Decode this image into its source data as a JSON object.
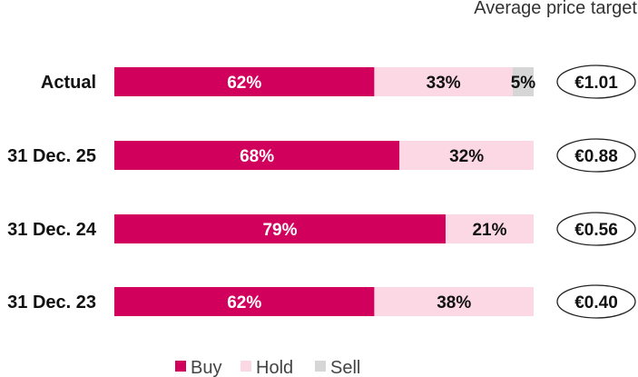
{
  "chart_data": {
    "type": "bar",
    "orientation": "horizontal",
    "stacked": true,
    "title": "Average price target",
    "categories": [
      "Actual",
      "31 Dec. 25",
      "31 Dec. 24",
      "31 Dec. 23"
    ],
    "series": [
      {
        "name": "Buy",
        "color": "#d1005d",
        "text_color": "#ffffff",
        "values": [
          62,
          68,
          79,
          62
        ]
      },
      {
        "name": "Hold",
        "color": "#fbd8e3",
        "text_color": "#111111",
        "values": [
          33,
          32,
          21,
          38
        ]
      },
      {
        "name": "Sell",
        "color": "#d6d6d6",
        "text_color": "#111111",
        "values": [
          5,
          0,
          0,
          0
        ]
      }
    ],
    "value_suffix": "%",
    "price_targets": [
      "€1.01",
      "€0.88",
      "€0.56",
      "€0.40"
    ],
    "legend_position": "bottom"
  }
}
